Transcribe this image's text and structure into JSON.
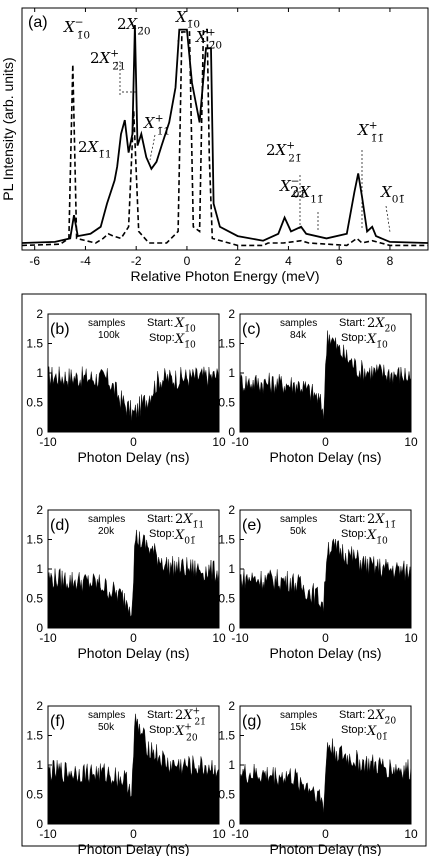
{
  "chart_data": [
    {
      "type": "line",
      "panel_label": "(a)",
      "xlabel": "Relative Photon Energy (meV)",
      "ylabel": "PL Intensity (arb. units)",
      "xlim": [
        -6.5,
        9.5
      ],
      "x_ticks": [
        -6,
        -4,
        -2,
        0,
        2,
        4,
        6,
        8
      ],
      "grid": false,
      "series": [
        {
          "style": "solid",
          "color": "#000000",
          "points": [
            [
              -6.5,
              0.03
            ],
            [
              -5.2,
              0.035
            ],
            [
              -4.6,
              0.05
            ],
            [
              -4.45,
              0.15
            ],
            [
              -4.3,
              0.06
            ],
            [
              -3.8,
              0.07
            ],
            [
              -3.4,
              0.1
            ],
            [
              -3.15,
              0.2
            ],
            [
              -3.0,
              0.25
            ],
            [
              -2.85,
              0.3
            ],
            [
              -2.75,
              0.36
            ],
            [
              -2.6,
              0.5
            ],
            [
              -2.45,
              0.56
            ],
            [
              -2.3,
              0.42
            ],
            [
              -2.15,
              0.5
            ],
            [
              -2.05,
              0.97
            ],
            [
              -1.95,
              0.45
            ],
            [
              -1.8,
              0.5
            ],
            [
              -1.6,
              0.4
            ],
            [
              -1.4,
              0.35
            ],
            [
              -1.2,
              0.38
            ],
            [
              -1.0,
              0.45
            ],
            [
              -0.7,
              0.55
            ],
            [
              -0.45,
              0.7
            ],
            [
              -0.3,
              0.95
            ],
            [
              -0.1,
              0.95
            ],
            [
              0.0,
              0.95
            ],
            [
              0.2,
              0.72
            ],
            [
              0.5,
              0.55
            ],
            [
              0.75,
              0.87
            ],
            [
              0.95,
              0.87
            ],
            [
              1.05,
              0.2
            ],
            [
              1.3,
              0.1
            ],
            [
              2.0,
              0.06
            ],
            [
              3.0,
              0.04
            ],
            [
              3.6,
              0.07
            ],
            [
              3.85,
              0.14
            ],
            [
              4.1,
              0.08
            ],
            [
              4.5,
              0.1
            ],
            [
              4.7,
              0.07
            ],
            [
              5.5,
              0.05
            ],
            [
              6.3,
              0.07
            ],
            [
              6.6,
              0.25
            ],
            [
              6.75,
              0.33
            ],
            [
              6.9,
              0.23
            ],
            [
              7.1,
              0.08
            ],
            [
              7.3,
              0.1
            ],
            [
              7.45,
              0.06
            ],
            [
              8.0,
              0.035
            ],
            [
              9.5,
              0.03
            ]
          ]
        },
        {
          "style": "dashed",
          "color": "#000000",
          "points": [
            [
              -6.5,
              0.02
            ],
            [
              -5.0,
              0.025
            ],
            [
              -4.65,
              0.05
            ],
            [
              -4.5,
              0.8
            ],
            [
              -4.35,
              0.05
            ],
            [
              -3.6,
              0.03
            ],
            [
              -3.3,
              0.05
            ],
            [
              -3.1,
              0.07
            ],
            [
              -2.9,
              0.06
            ],
            [
              -2.6,
              0.05
            ],
            [
              -2.3,
              0.1
            ],
            [
              -2.1,
              0.6
            ],
            [
              -1.9,
              0.08
            ],
            [
              -1.5,
              0.03
            ],
            [
              -0.8,
              0.03
            ],
            [
              -0.35,
              0.08
            ],
            [
              -0.2,
              0.94
            ],
            [
              0.1,
              0.94
            ],
            [
              0.25,
              0.1
            ],
            [
              0.5,
              0.08
            ],
            [
              0.65,
              0.95
            ],
            [
              0.8,
              0.95
            ],
            [
              0.88,
              0.4
            ],
            [
              1.0,
              0.05
            ],
            [
              2.0,
              0.02
            ],
            [
              3.0,
              0.02
            ],
            [
              3.2,
              0.03
            ],
            [
              3.8,
              0.03
            ],
            [
              4.5,
              0.04
            ],
            [
              4.8,
              0.03
            ],
            [
              6.3,
              0.02
            ],
            [
              6.7,
              0.05
            ],
            [
              6.9,
              0.03
            ],
            [
              7.3,
              0.04
            ],
            [
              8.0,
              0.02
            ],
            [
              9.5,
              0.02
            ]
          ]
        }
      ]
    },
    {
      "type": "area",
      "panel_label": "(b)",
      "samples_label": "samples",
      "samples": "100k",
      "start_label": "Start:",
      "stop_label": "Stop:",
      "start": "X",
      "start_sub": "1̄0",
      "start_pre": "",
      "start_sup": "",
      "stop": "X",
      "stop_sub": "1̄0",
      "stop_sup": "",
      "xlabel": "Photon Delay (ns)",
      "xlim": [
        -10,
        10
      ],
      "ylim": [
        0,
        2
      ],
      "x_ticks": [
        -10,
        0,
        10
      ],
      "y_ticks": [
        0,
        0.5,
        1,
        1.5,
        2
      ],
      "profile": [
        [
          -10,
          0.95
        ],
        [
          -3,
          0.9
        ],
        [
          -1.5,
          0.55
        ],
        [
          0,
          0.3
        ],
        [
          1.5,
          0.55
        ],
        [
          3,
          0.9
        ],
        [
          10,
          0.95
        ]
      ]
    },
    {
      "type": "area",
      "panel_label": "(c)",
      "samples_label": "samples",
      "samples": "84k",
      "start_label": "Start:",
      "stop_label": "Stop:",
      "start": "X",
      "start_sub": "2̄0",
      "start_pre": "2",
      "start_sup": "",
      "stop": "X",
      "stop_sub": "1̄0",
      "stop_sup": "",
      "xlabel": "Photon Delay (ns)",
      "xlim": [
        -10,
        10
      ],
      "ylim": [
        0,
        2
      ],
      "x_ticks": [
        -10,
        0,
        10
      ],
      "y_ticks": [
        0,
        0.5,
        1,
        1.5,
        2
      ],
      "profile": [
        [
          -10,
          0.85
        ],
        [
          -3,
          0.8
        ],
        [
          -1,
          0.6
        ],
        [
          -0.2,
          0.35
        ],
        [
          0.2,
          1.7
        ],
        [
          1.5,
          1.4
        ],
        [
          4,
          1.05
        ],
        [
          10,
          0.95
        ]
      ]
    },
    {
      "type": "area",
      "panel_label": "(d)",
      "samples_label": "samples",
      "samples": "20k",
      "start_label": "Start:",
      "stop_label": "Stop:",
      "start": "X",
      "start_sub": "1̄1",
      "start_pre": "2",
      "start_sup": "",
      "stop": "X",
      "stop_sub": "01̄",
      "stop_sup": "",
      "xlabel": "Photon Delay (ns)",
      "xlim": [
        -10,
        10
      ],
      "ylim": [
        0,
        2
      ],
      "x_ticks": [
        -10,
        0,
        10
      ],
      "y_ticks": [
        0,
        0.5,
        1,
        1.5,
        2
      ],
      "profile": [
        [
          -10,
          0.85
        ],
        [
          -4,
          0.75
        ],
        [
          -1,
          0.5
        ],
        [
          -0.2,
          0.35
        ],
        [
          0.2,
          1.55
        ],
        [
          1.5,
          1.4
        ],
        [
          4,
          1.05
        ],
        [
          10,
          0.95
        ]
      ]
    },
    {
      "type": "area",
      "panel_label": "(e)",
      "samples_label": "samples",
      "samples": "50k",
      "start_label": "Start:",
      "stop_label": "Stop:",
      "start": "X",
      "start_sub": "11̄",
      "start_pre": "2",
      "start_sup": "",
      "stop": "X",
      "stop_sub": "1̄0",
      "stop_sup": "",
      "xlabel": "Photon Delay (ns)",
      "xlim": [
        -10,
        10
      ],
      "ylim": [
        0,
        2
      ],
      "x_ticks": [
        -10,
        0,
        10
      ],
      "y_ticks": [
        0,
        0.5,
        1,
        1.5,
        2
      ],
      "profile": [
        [
          -10,
          0.85
        ],
        [
          -4,
          0.8
        ],
        [
          -1,
          0.55
        ],
        [
          -0.2,
          0.4
        ],
        [
          0.2,
          1.4
        ],
        [
          2,
          1.3
        ],
        [
          5,
          1.05
        ],
        [
          10,
          0.95
        ]
      ]
    },
    {
      "type": "area",
      "panel_label": "(f)",
      "samples_label": "samples",
      "samples": "50k",
      "start_label": "Start:",
      "stop_label": "Stop:",
      "start": "X",
      "start_sub": "21̄",
      "start_pre": "2",
      "start_sup": "+",
      "stop": "X",
      "stop_sub": "2̄0",
      "stop_sup": "+",
      "xlabel": "Photon Delay (ns)",
      "xlim": [
        -10,
        10
      ],
      "ylim": [
        0,
        2
      ],
      "x_ticks": [
        -10,
        0,
        10
      ],
      "y_ticks": [
        0,
        0.5,
        1,
        1.5,
        2
      ],
      "profile": [
        [
          -10,
          0.9
        ],
        [
          -3,
          0.85
        ],
        [
          -1,
          0.75
        ],
        [
          -0.2,
          0.6
        ],
        [
          0.2,
          1.75
        ],
        [
          1.5,
          1.35
        ],
        [
          4,
          1.0
        ],
        [
          10,
          0.95
        ]
      ]
    },
    {
      "type": "area",
      "panel_label": "(g)",
      "samples_label": "samples",
      "samples": "15k",
      "start_label": "Start:",
      "stop_label": "Stop:",
      "start": "X",
      "start_sub": "2̄0",
      "start_pre": "2",
      "start_sup": "",
      "stop": "X",
      "stop_sub": "01̄",
      "stop_sup": "",
      "xlabel": "Photon Delay (ns)",
      "xlim": [
        -10,
        10
      ],
      "ylim": [
        0,
        2
      ],
      "x_ticks": [
        -10,
        0,
        10
      ],
      "y_ticks": [
        0,
        0.5,
        1,
        1.5,
        2
      ],
      "profile": [
        [
          -10,
          0.85
        ],
        [
          -4,
          0.8
        ],
        [
          -1,
          0.55
        ],
        [
          -0.2,
          0.3
        ],
        [
          0.2,
          1.35
        ],
        [
          2,
          1.15
        ],
        [
          5,
          1.0
        ],
        [
          10,
          0.9
        ]
      ]
    }
  ],
  "annotations": [
    {
      "pre": "",
      "base": "X",
      "sub": "1̄0",
      "sup": "−",
      "pos": "top-left"
    },
    {
      "pre": "2",
      "base": "X",
      "sub": "2̄0",
      "sup": "",
      "pos": "top"
    },
    {
      "pre": "2",
      "base": "X",
      "sub": "2̄1",
      "sup": "+",
      "pos": "upper-left"
    },
    {
      "pre": "",
      "base": "X",
      "sub": "1̄0",
      "sup": "",
      "pos": "top-center"
    },
    {
      "pre": "",
      "base": "X",
      "sub": "2̄0",
      "sup": "+",
      "pos": "top-right"
    },
    {
      "pre": "",
      "base": "X",
      "sub": "1̄1",
      "sup": "+",
      "pos": "mid"
    },
    {
      "pre": "2",
      "base": "X",
      "sub": "1̄1",
      "sup": "",
      "pos": "left"
    },
    {
      "pre": "2",
      "base": "X",
      "sub": "21̄",
      "sup": "+",
      "pos": "right-mid"
    },
    {
      "pre": "",
      "base": "X",
      "sub": "01̄",
      "sup": "−",
      "pos": "right-low"
    },
    {
      "pre": "2",
      "base": "X",
      "sub": "11̄",
      "sup": "",
      "pos": "right-low2"
    },
    {
      "pre": "",
      "base": "X",
      "sub": "1̄1̄",
      "sup": "+",
      "pos": "far-right"
    },
    {
      "pre": "",
      "base": "X",
      "sub": "01̄",
      "sup": "",
      "pos": "far-right-low"
    }
  ]
}
